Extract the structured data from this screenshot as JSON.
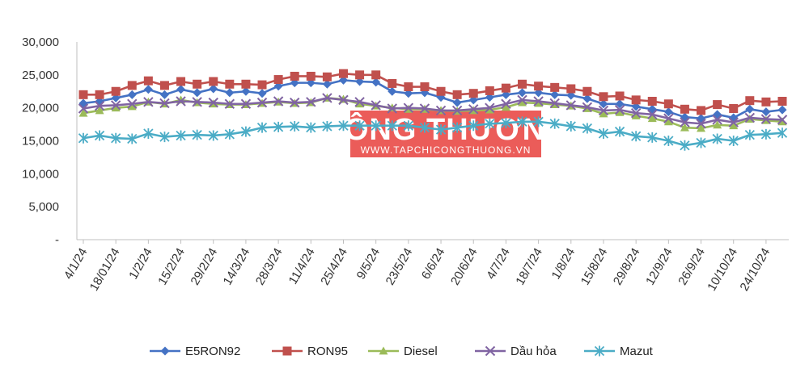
{
  "chart_data": {
    "type": "line",
    "title": "",
    "xlabel": "",
    "ylabel": "",
    "ylim": [
      0,
      30000
    ],
    "yticks": [
      0,
      5000,
      10000,
      15000,
      20000,
      25000,
      30000
    ],
    "ytick_labels": [
      "-",
      "5,000",
      "10,000",
      "15,000",
      "20,000",
      "25,000",
      "30,000"
    ],
    "x_tick_labels": [
      "4/1/24",
      "18/01/24",
      "1/2/24",
      "15/2/24",
      "29/2/24",
      "14/3/24",
      "28/3/24",
      "11/4/24",
      "25/4/24",
      "9/5/24",
      "23/5/24",
      "6/6/24",
      "20/6/24",
      "4/7/24",
      "18/7/24",
      "1/8/24",
      "15/8/24",
      "29/8/24",
      "12/9/24",
      "26/9/24",
      "10/10/24",
      "24/10/24"
    ],
    "legend_position": "bottom",
    "grid": false,
    "series": [
      {
        "name": "E5RON92",
        "color": "#4472C4",
        "marker": "diamond",
        "values": [
          20700,
          21000,
          21500,
          22000,
          22800,
          22000,
          22800,
          22300,
          22900,
          22300,
          22500,
          22200,
          23300,
          23800,
          23800,
          23600,
          24200,
          24000,
          23900,
          22500,
          22200,
          22300,
          21600,
          20800,
          21200,
          21600,
          22000,
          22300,
          22300,
          22000,
          21900,
          21400,
          20600,
          20600,
          20200,
          19800,
          19400,
          18600,
          18400,
          19000,
          18500,
          19800,
          19400,
          19700
        ]
      },
      {
        "name": "RON95",
        "color": "#C0504D",
        "marker": "square",
        "values": [
          22000,
          22000,
          22500,
          23400,
          24100,
          23400,
          24000,
          23600,
          24000,
          23600,
          23600,
          23500,
          24300,
          24800,
          24800,
          24700,
          25200,
          25000,
          25000,
          23700,
          23200,
          23200,
          22500,
          22000,
          22200,
          22600,
          23000,
          23600,
          23300,
          23100,
          22900,
          22500,
          21700,
          21800,
          21200,
          21000,
          20600,
          19800,
          19600,
          20500,
          19900,
          21100,
          20900,
          21000
        ]
      },
      {
        "name": "Diesel",
        "color": "#9BBB59",
        "marker": "triangle",
        "values": [
          19200,
          19600,
          20000,
          20200,
          20900,
          20600,
          21200,
          20800,
          20600,
          20500,
          20500,
          20700,
          20900,
          20700,
          20800,
          21500,
          21300,
          20600,
          20300,
          20000,
          19800,
          19800,
          19600,
          19500,
          19600,
          19700,
          20100,
          20800,
          20700,
          20500,
          20300,
          19900,
          19100,
          19300,
          18800,
          18400,
          17900,
          17000,
          16900,
          17400,
          17300,
          18300,
          18100,
          17900
        ]
      },
      {
        "name": "Dầu hỏa",
        "color": "#8064A2",
        "marker": "x",
        "values": [
          19900,
          20300,
          20400,
          20600,
          20900,
          20700,
          21000,
          20900,
          20800,
          20600,
          20600,
          20800,
          21000,
          20800,
          20900,
          21500,
          21200,
          20900,
          20400,
          19900,
          20000,
          19900,
          19600,
          19600,
          19800,
          20000,
          20600,
          21200,
          21000,
          20700,
          20400,
          20100,
          19600,
          19700,
          19200,
          19000,
          18400,
          17800,
          17600,
          18200,
          17800,
          18500,
          18300,
          18200
        ]
      },
      {
        "name": "Mazut",
        "color": "#4BACC6",
        "marker": "asterisk",
        "values": [
          15400,
          15800,
          15400,
          15300,
          16100,
          15600,
          15800,
          15900,
          15800,
          16000,
          16400,
          17000,
          17100,
          17200,
          17000,
          17200,
          17300,
          17300,
          17300,
          17300,
          17300,
          17000,
          16700,
          17000,
          17300,
          17600,
          17700,
          17900,
          17900,
          17600,
          17200,
          16900,
          16100,
          16400,
          15700,
          15500,
          15000,
          14300,
          14700,
          15300,
          15000,
          15900,
          16000,
          16200
        ]
      }
    ]
  },
  "watermark": {
    "title": "CÔNG THƯƠNG",
    "subtitle": "WWW.TAPCHICONGTHUONG.VN",
    "color": "#E8403C"
  }
}
